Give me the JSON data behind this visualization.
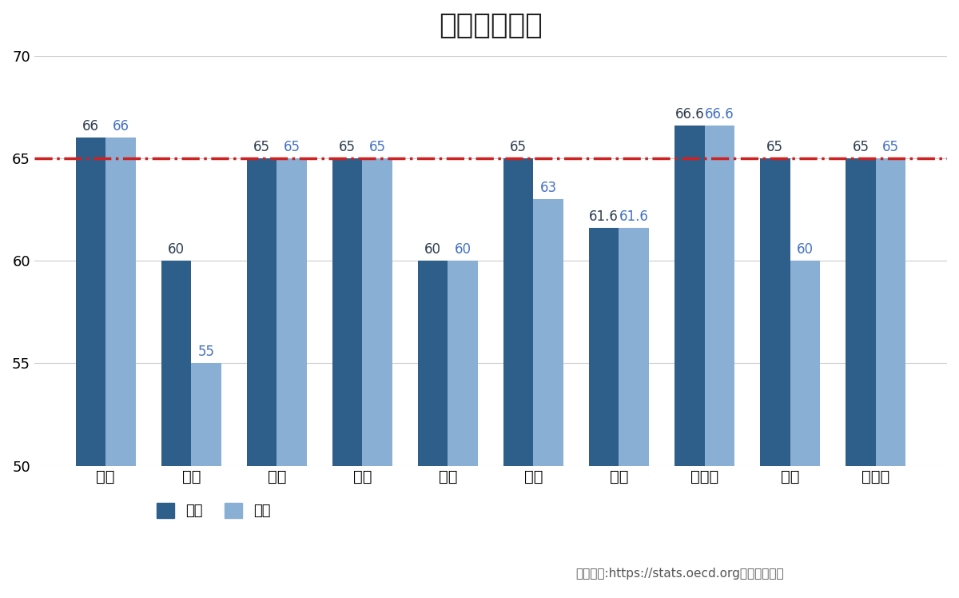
{
  "title": "各国退休年龄",
  "categories": [
    "美国",
    "中国",
    "日本",
    "德国",
    "印度",
    "英国",
    "法国",
    "意大利",
    "巴西",
    "加拿大"
  ],
  "male_values": [
    66,
    60,
    65,
    65,
    60,
    65,
    61.6,
    66.6,
    65,
    65
  ],
  "female_values": [
    66,
    55,
    65,
    65,
    60,
    63,
    61.6,
    66.6,
    60,
    65
  ],
  "male_color": "#2E5F8A",
  "female_color": "#8AAFD4",
  "male_label": "男性",
  "female_label": "女性",
  "refline_y": 65,
  "refline_color": "#CC2222",
  "ylim": [
    50,
    70
  ],
  "yticks": [
    50,
    55,
    60,
    65,
    70
  ],
  "source_text": "数据来源:https://stats.oecd.org。陈龙飞制表",
  "background_color": "#FFFFFF",
  "bar_width": 0.35,
  "male_label_color": "#2E3E50",
  "female_label_color": "#4472C4",
  "border_color": "#4472C4"
}
